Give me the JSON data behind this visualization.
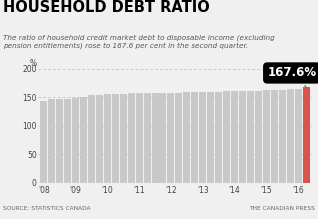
{
  "title": "HOUSEHOLD DEBT RATIO",
  "subtitle": "The ratio of household credit market debt to disposable income (excluding\npension entitlements) rose to 167.6 per cent in the second quarter.",
  "source_left": "SOURCE: STATISTICS CANADA",
  "source_right": "THE CANADIAN PRESS",
  "annotation": "167.6%",
  "ylim": [
    0,
    200
  ],
  "yticks": [
    0,
    50,
    100,
    150,
    200
  ],
  "ylabel": "%",
  "bar_values": [
    143.5,
    146.5,
    147.5,
    148.0,
    149.5,
    151.5,
    153.5,
    155.0,
    155.5,
    156.0,
    156.5,
    157.0,
    157.5,
    158.0,
    158.0,
    158.5,
    158.5,
    158.5,
    159.0,
    159.5,
    159.5,
    159.5,
    160.0,
    160.5,
    160.5,
    161.0,
    161.5,
    162.0,
    162.5,
    163.0,
    163.5,
    164.0,
    164.5,
    167.6
  ],
  "bar_color_default": "#c8c8c8",
  "bar_color_highlight": "#d9534f",
  "background_color": "#f0f0f0",
  "grid_color": "#bbbbbb",
  "title_fontsize": 10.5,
  "subtitle_fontsize": 5.2,
  "annotation_fontsize": 8.5,
  "source_fontsize": 4.2,
  "ytick_fontsize": 5.5,
  "xtick_fontsize": 5.5
}
